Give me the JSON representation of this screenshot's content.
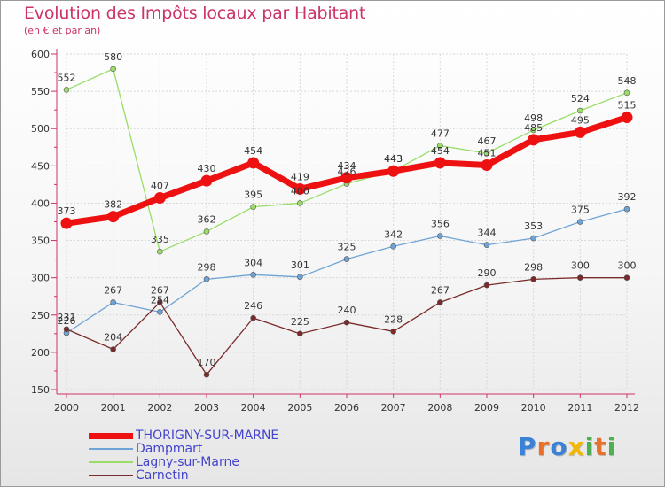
{
  "header": {
    "title": "Evolution des Impôts locaux par Habitant",
    "subtitle": "(en € et par an)"
  },
  "logo": {
    "text": "Proxiti",
    "letters": [
      {
        "ch": "P",
        "color": "#3b82d6"
      },
      {
        "ch": "r",
        "color": "#e8702a"
      },
      {
        "ch": "o",
        "color": "#3b82d6"
      },
      {
        "ch": "x",
        "color": "#f2b807"
      },
      {
        "ch": "i",
        "color": "#4caf50"
      },
      {
        "ch": "t",
        "color": "#e8702a"
      },
      {
        "ch": "i",
        "color": "#4caf50"
      }
    ]
  },
  "colors": {
    "axis": "#cc3366",
    "grid": "#d8d8d8",
    "value_label": "#333333"
  },
  "chart_data": {
    "type": "line",
    "x": [
      "2000",
      "2001",
      "2002",
      "2003",
      "2004",
      "2005",
      "2006",
      "2007",
      "2008",
      "2009",
      "2010",
      "2011",
      "2012"
    ],
    "ylim": [
      150,
      600
    ],
    "yticks": [
      150,
      200,
      250,
      300,
      350,
      400,
      450,
      500,
      550,
      600
    ],
    "grid": true,
    "legend_position": "bottom-left",
    "series": [
      {
        "name": "THORIGNY-SUR-MARNE",
        "color": "#ee1111",
        "emphasis": true,
        "values": [
          373,
          382,
          407,
          430,
          454,
          419,
          434,
          443,
          454,
          451,
          485,
          495,
          515
        ]
      },
      {
        "name": "Dampmart",
        "color": "#6fa3d6",
        "values": [
          226,
          267,
          254,
          298,
          304,
          301,
          325,
          342,
          356,
          344,
          353,
          375,
          392
        ]
      },
      {
        "name": "Lagny-sur-Marne",
        "color": "#99dd66",
        "values": [
          552,
          580,
          335,
          362,
          395,
          400,
          426,
          443,
          477,
          467,
          498,
          524,
          548
        ]
      },
      {
        "name": "Carnetin",
        "color": "#7a2a2a",
        "values": [
          231,
          204,
          267,
          170,
          246,
          225,
          240,
          228,
          267,
          290,
          298,
          300,
          300
        ]
      }
    ]
  }
}
